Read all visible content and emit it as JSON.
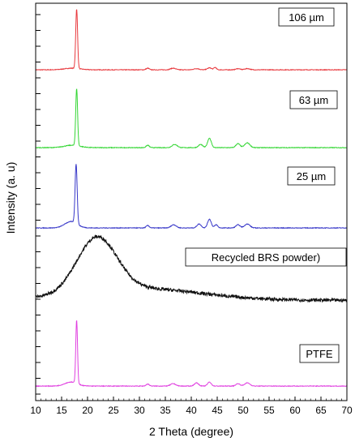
{
  "chart_data": {
    "type": "line",
    "xlabel": "2 Theta (degree)",
    "ylabel": "Intensity (a. u)",
    "xlim": [
      10,
      70
    ],
    "x_ticks": [
      10,
      15,
      20,
      25,
      30,
      35,
      40,
      45,
      50,
      55,
      60,
      65,
      70
    ],
    "grid": false,
    "series": [
      {
        "name": "106 µm",
        "color": "#e8383d",
        "baseline": 0.04,
        "peaks": [
          {
            "x": 17.9,
            "h": 0.75,
            "w": 0.18
          },
          {
            "x": 31.6,
            "h": 0.02,
            "w": 0.3
          },
          {
            "x": 36.5,
            "h": 0.02,
            "w": 0.5
          },
          {
            "x": 41.0,
            "h": 0.015,
            "w": 0.5
          },
          {
            "x": 43.5,
            "h": 0.025,
            "w": 0.4
          },
          {
            "x": 44.6,
            "h": 0.03,
            "w": 0.25
          },
          {
            "x": 49.0,
            "h": 0.015,
            "w": 0.4
          },
          {
            "x": 50.8,
            "h": 0.015,
            "w": 0.5
          }
        ],
        "hump": {
          "x": 17.0,
          "h": 0.02,
          "w": 1.5
        }
      },
      {
        "name": "63 µm",
        "color": "#33d633",
        "baseline": 0.04,
        "peaks": [
          {
            "x": 17.9,
            "h": 0.72,
            "w": 0.18
          },
          {
            "x": 31.6,
            "h": 0.03,
            "w": 0.3
          },
          {
            "x": 36.8,
            "h": 0.04,
            "w": 0.5
          },
          {
            "x": 41.8,
            "h": 0.04,
            "w": 0.4
          },
          {
            "x": 43.5,
            "h": 0.12,
            "w": 0.35
          },
          {
            "x": 49.0,
            "h": 0.05,
            "w": 0.4
          },
          {
            "x": 50.8,
            "h": 0.06,
            "w": 0.5
          }
        ],
        "hump": {
          "x": 17.0,
          "h": 0.03,
          "w": 1.5
        }
      },
      {
        "name": "25 µm",
        "color": "#3737c8",
        "baseline": 0.04,
        "peaks": [
          {
            "x": 17.8,
            "h": 0.75,
            "w": 0.2
          },
          {
            "x": 31.6,
            "h": 0.03,
            "w": 0.3
          },
          {
            "x": 36.6,
            "h": 0.04,
            "w": 0.5
          },
          {
            "x": 41.5,
            "h": 0.05,
            "w": 0.4
          },
          {
            "x": 43.5,
            "h": 0.11,
            "w": 0.35
          },
          {
            "x": 44.8,
            "h": 0.04,
            "w": 0.3
          },
          {
            "x": 49.0,
            "h": 0.04,
            "w": 0.4
          },
          {
            "x": 50.8,
            "h": 0.05,
            "w": 0.5
          }
        ],
        "hump": {
          "x": 16.8,
          "h": 0.08,
          "w": 1.2
        }
      },
      {
        "name": "Recycled BRS powder)",
        "color": "#111111",
        "baseline": 0.08,
        "peaks": [],
        "hump": {
          "x": 21.8,
          "h": 0.56,
          "w": 3.8
        },
        "tail": {
          "x": 30,
          "h": 0.12,
          "w": 12
        }
      },
      {
        "name": "PTFE",
        "color": "#e040e0",
        "baseline": 0.04,
        "peaks": [
          {
            "x": 17.9,
            "h": 0.8,
            "w": 0.17
          },
          {
            "x": 31.6,
            "h": 0.025,
            "w": 0.3
          },
          {
            "x": 36.5,
            "h": 0.03,
            "w": 0.5
          },
          {
            "x": 41.0,
            "h": 0.04,
            "w": 0.4
          },
          {
            "x": 43.5,
            "h": 0.05,
            "w": 0.35
          },
          {
            "x": 49.0,
            "h": 0.03,
            "w": 0.4
          },
          {
            "x": 50.8,
            "h": 0.04,
            "w": 0.5
          }
        ],
        "hump": {
          "x": 16.8,
          "h": 0.05,
          "w": 1.2
        }
      }
    ]
  }
}
